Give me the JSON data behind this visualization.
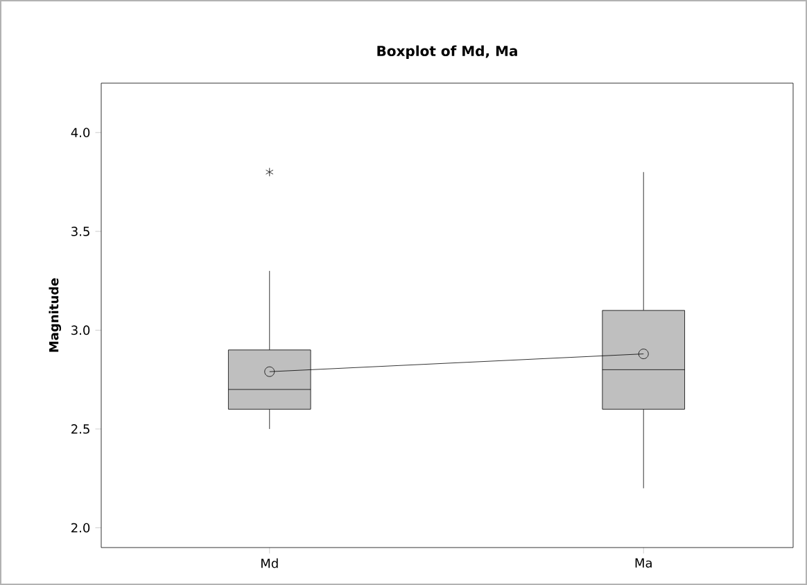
{
  "chart_data": {
    "type": "box",
    "title": "Boxplot of Md, Ma",
    "ylabel": "Magnitude",
    "categories": [
      "Md",
      "Ma"
    ],
    "color": "#bfbfbf",
    "boxes": [
      {
        "low": 2.5,
        "q1": 2.6,
        "median": 2.7,
        "q3": 2.9,
        "high": 3.3,
        "outliers": [
          3.8
        ]
      },
      {
        "low": 2.2,
        "q1": 2.6,
        "median": 2.8,
        "q3": 3.1,
        "high": 3.8
      }
    ],
    "series": [
      {
        "type": "line",
        "color": "#000000",
        "values": [
          2.79,
          2.88
        ],
        "marker": "circle"
      }
    ],
    "ylim": [
      1.9,
      4.25
    ],
    "yticks": [
      {
        "value": 2.0,
        "label": "2.0"
      },
      {
        "value": 2.5,
        "label": "2.5"
      },
      {
        "value": 3.0,
        "label": "3.0"
      },
      {
        "value": 3.5,
        "label": "3.5"
      },
      {
        "value": 4.0,
        "label": "4.0"
      }
    ],
    "grid": false
  }
}
